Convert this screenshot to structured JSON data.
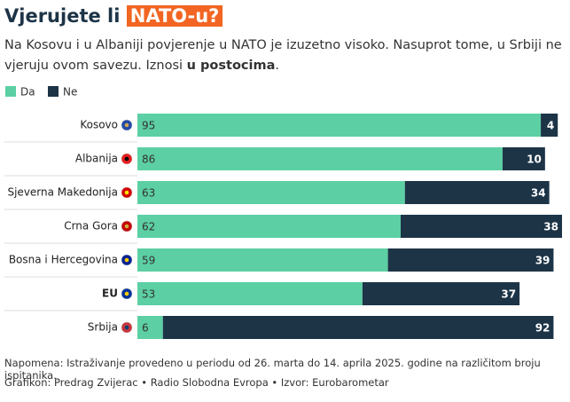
{
  "chart_data": {
    "type": "stacked-bar-horizontal",
    "title": "Vjerujete li",
    "title_highlight": "NATO-u?",
    "subtitle": "Na Kosovu i u Albaniji povjerenje u NATO je izuzetno visoko. Nasuprot tome, u Srbiji ne vjeruju ovom savezu. Iznosi",
    "subtitle_bold": "u postocima",
    "subtitle_end": ".",
    "categories": [
      "Kosovo",
      "Albanija",
      "Sjeverna Makedonija",
      "Crna Gora",
      "Bosna i Hercegovina",
      "EU",
      "Srbija"
    ],
    "emphasis": [
      false,
      false,
      false,
      false,
      false,
      true,
      false
    ],
    "series": [
      {
        "name": "Da",
        "color": "#5ccfa4",
        "values": [
          95,
          86,
          63,
          62,
          59,
          53,
          6
        ]
      },
      {
        "name": "Ne",
        "color": "#1d3447",
        "values": [
          4,
          10,
          34,
          38,
          39,
          37,
          92
        ]
      }
    ],
    "xlim": [
      0,
      100
    ],
    "notes": [
      "Napomena: Istraživanje provedeno u periodu od 26. marta do 14. aprila 2025. godine na različitom broju ispitanika.",
      "Grafikon: Predrag Zvijerac • Radio Slobodna Evropa • Izvor: Eurobarometar"
    ]
  }
}
